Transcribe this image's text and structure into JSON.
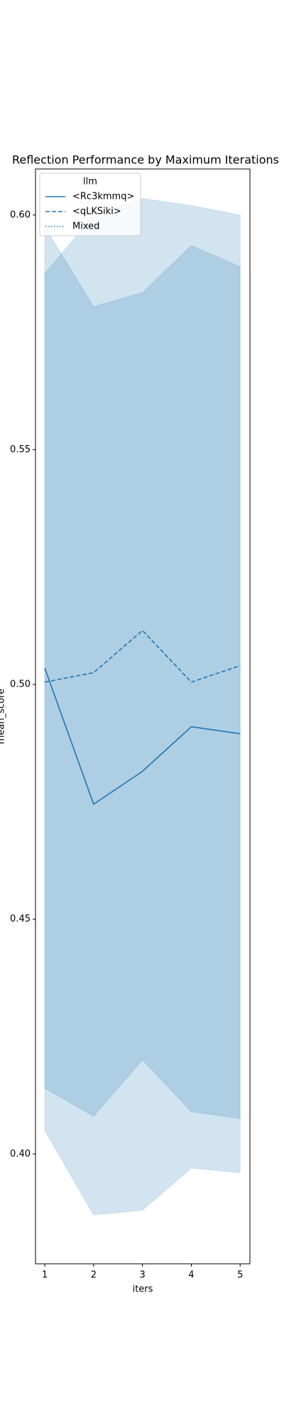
{
  "chart_data": {
    "type": "line",
    "title": "Reflection Performance by Maximum Iterations",
    "xlabel": "iters",
    "ylabel": "mean_score",
    "x": [
      1,
      2,
      3,
      4,
      5
    ],
    "xlim": [
      0.81,
      5.2
    ],
    "xticks": [
      1,
      2,
      3,
      4,
      5
    ],
    "ylim": [
      0.3766,
      0.6098
    ],
    "yticks": [
      {
        "value": 0.4,
        "label": "0.40"
      },
      0.45,
      {
        "value": 0.5,
        "label": "0.50"
      },
      0.55,
      {
        "value": 0.6,
        "label": "0.60"
      }
    ],
    "legend_title": "llm",
    "legend": "upper left",
    "series": [
      {
        "name": "<Rc3kmmq>",
        "color": "#1f77b4",
        "dash": "solid",
        "values": [
          0.5035,
          0.4745,
          0.4815,
          0.491,
          0.4895
        ],
        "ci_lower": [
          0.405,
          0.387,
          0.388,
          0.397,
          0.396
        ],
        "ci_upper": [
          0.5975,
          0.5805,
          0.5835,
          0.5935,
          0.589
        ]
      },
      {
        "name": "<qLKSiki>",
        "color": "#1f77b4",
        "dash": "dashed",
        "values": [
          0.5005,
          0.5025,
          0.5115,
          0.5005,
          0.504
        ],
        "ci_lower": [
          0.414,
          0.408,
          0.42,
          0.409,
          0.4075
        ],
        "ci_upper": [
          0.5875,
          0.6,
          0.6035,
          0.602,
          0.6
        ]
      },
      {
        "name": "Mixed",
        "color": "#1f77b4",
        "dash": "dotted",
        "values": [
          null,
          null,
          null,
          null,
          null
        ]
      }
    ]
  }
}
